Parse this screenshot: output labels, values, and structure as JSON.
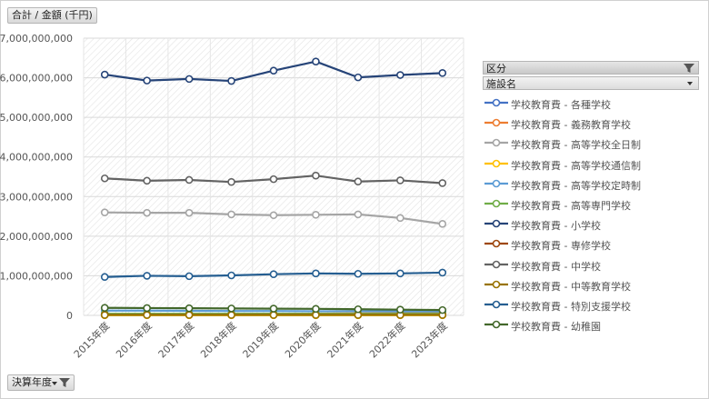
{
  "value_field_button": "合計 / 金額 (千円)",
  "axis_field_button": "決算年度",
  "legend_header": {
    "label": "区分",
    "field": "施設名"
  },
  "chart_data": {
    "type": "line",
    "title": "",
    "ylabel": "合計 / 金額 (千円)",
    "xlabel": "決算年度",
    "ylim": [
      0,
      7000000000
    ],
    "yticks": [
      0,
      1000000000,
      2000000000,
      3000000000,
      4000000000,
      5000000000,
      6000000000,
      7000000000
    ],
    "ytick_labels": [
      "0",
      "1,000,000,000",
      "2,000,000,000",
      "3,000,000,000",
      "4,000,000,000",
      "5,000,000,000",
      "6,000,000,000",
      "7,000,000,000"
    ],
    "categories": [
      "2015年度",
      "2016年度",
      "2017年度",
      "2018年度",
      "2019年度",
      "2020年度",
      "2021年度",
      "2022年度",
      "2023年度"
    ],
    "legend_position": "right",
    "series": [
      {
        "name": "学校教育費 - 各種学校",
        "color": "#4472c4",
        "values": [
          30000000,
          30000000,
          30000000,
          30000000,
          30000000,
          30000000,
          30000000,
          30000000,
          30000000
        ]
      },
      {
        "name": "学校教育費 - 義務教育学校",
        "color": "#ed7d31",
        "values": [
          20000000,
          25000000,
          30000000,
          35000000,
          40000000,
          45000000,
          50000000,
          55000000,
          60000000
        ]
      },
      {
        "name": "学校教育費 - 高等学校全日制",
        "color": "#a5a5a5",
        "values": [
          2600000000,
          2590000000,
          2590000000,
          2550000000,
          2530000000,
          2540000000,
          2550000000,
          2460000000,
          2310000000
        ]
      },
      {
        "name": "学校教育費 - 高等学校通信制",
        "color": "#ffc000",
        "values": [
          5000000,
          5000000,
          5000000,
          5000000,
          5000000,
          5000000,
          5000000,
          5000000,
          5000000
        ]
      },
      {
        "name": "学校教育費 - 高等学校定時制",
        "color": "#5b9bd5",
        "values": [
          120000000,
          120000000,
          115000000,
          110000000,
          110000000,
          105000000,
          105000000,
          100000000,
          100000000
        ]
      },
      {
        "name": "学校教育費 - 高等専門学校",
        "color": "#70ad47",
        "values": [
          40000000,
          40000000,
          40000000,
          40000000,
          40000000,
          40000000,
          40000000,
          40000000,
          40000000
        ]
      },
      {
        "name": "学校教育費 - 小学校",
        "color": "#264478",
        "values": [
          6080000000,
          5930000000,
          5970000000,
          5920000000,
          6180000000,
          6410000000,
          6010000000,
          6070000000,
          6120000000
        ]
      },
      {
        "name": "学校教育費 - 専修学校",
        "color": "#9e480e",
        "values": [
          15000000,
          15000000,
          15000000,
          15000000,
          15000000,
          15000000,
          15000000,
          15000000,
          15000000
        ]
      },
      {
        "name": "学校教育費 - 中学校",
        "color": "#636363",
        "values": [
          3460000000,
          3400000000,
          3420000000,
          3370000000,
          3440000000,
          3530000000,
          3380000000,
          3410000000,
          3340000000
        ]
      },
      {
        "name": "学校教育費 - 中等教育学校",
        "color": "#997300",
        "values": [
          10000000,
          10000000,
          10000000,
          10000000,
          10000000,
          10000000,
          10000000,
          10000000,
          10000000
        ]
      },
      {
        "name": "学校教育費 - 特別支援学校",
        "color": "#255e91",
        "values": [
          970000000,
          1000000000,
          990000000,
          1010000000,
          1040000000,
          1060000000,
          1050000000,
          1060000000,
          1080000000
        ]
      },
      {
        "name": "学校教育費 - 幼稚園",
        "color": "#43682b",
        "values": [
          190000000,
          185000000,
          180000000,
          175000000,
          170000000,
          165000000,
          155000000,
          145000000,
          135000000
        ]
      }
    ]
  }
}
